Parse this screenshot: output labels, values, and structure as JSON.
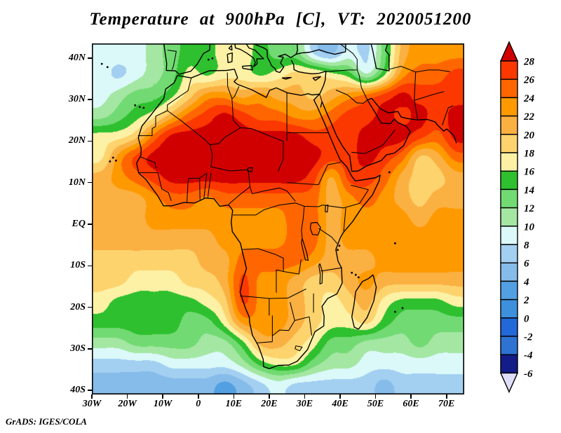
{
  "title": "Temperature at 900hPa [C], VT: 2020051200",
  "attribution": "GrADS: IGES/COLA",
  "colors": {
    "background": "#ffffff",
    "frame": "#000000",
    "text": "#000000"
  },
  "chart_data": {
    "type": "heatmap",
    "variable": "Temperature",
    "level": "900hPa",
    "units": "C",
    "valid_time": "2020051200",
    "title": "Temperature at 900hPa [C], VT: 2020051200",
    "grid_on": false,
    "legend_position": "right",
    "lon_range": [
      -30,
      75
    ],
    "lat_range": [
      -41,
      43.5
    ],
    "lon_ticks": {
      "labels": [
        "30W",
        "20W",
        "10W",
        "0",
        "10E",
        "20E",
        "30E",
        "40E",
        "50E",
        "60E",
        "70E"
      ],
      "values": [
        -30,
        -20,
        -10,
        0,
        10,
        20,
        30,
        40,
        50,
        60,
        70
      ]
    },
    "lat_ticks": {
      "labels": [
        "40N",
        "30N",
        "20N",
        "10N",
        "EQ",
        "10S",
        "20S",
        "30S",
        "40S"
      ],
      "values": [
        40,
        30,
        20,
        10,
        0,
        -10,
        -20,
        -30,
        -40
      ]
    },
    "colorbar": {
      "boundary_labels": [
        "28",
        "26",
        "24",
        "22",
        "20",
        "18",
        "16",
        "14",
        "12",
        "10",
        "8",
        "6",
        "4",
        "2",
        "0",
        "-2",
        "-4",
        "-6"
      ],
      "boundaries": [
        28,
        26,
        24,
        22,
        20,
        18,
        16,
        14,
        12,
        10,
        8,
        6,
        4,
        2,
        0,
        -2,
        -4,
        -6
      ],
      "colors_top_to_bottom": [
        "#d10000",
        "#fa3800",
        "#ff6600",
        "#ff9900",
        "#fbb042",
        "#fdd36d",
        "#fdf1a6",
        "#2ec02e",
        "#72da72",
        "#a3e7a3",
        "#dcf9f9",
        "#a3cff1",
        "#86bce9",
        "#529fe2",
        "#3c90dc",
        "#2268d8",
        "#2e72d2",
        "#131c87",
        "#e0def6"
      ],
      "over_color": "#d10000",
      "under_color": "#e0def6"
    },
    "grid": {
      "lons": [
        -27.5,
        -22.5,
        -17.5,
        -12.5,
        -7.5,
        -2.5,
        2.5,
        7.5,
        12.5,
        17.5,
        22.5,
        27.5,
        32.5,
        37.5,
        42.5,
        47.5,
        52.5,
        57.5,
        62.5,
        67.5,
        72.5
      ],
      "lats": [
        42.5,
        37.5,
        32.5,
        27.5,
        22.5,
        17.5,
        12.5,
        7.5,
        2.5,
        -2.5,
        -7.5,
        -12.5,
        -17.5,
        -22.5,
        -27.5,
        -32.5,
        -37.5
      ],
      "temps_c": [
        [
          9,
          9,
          9,
          11,
          13,
          15,
          15,
          17,
          17,
          15,
          13,
          13,
          7,
          5,
          9,
          7,
          13,
          21,
          23,
          23,
          23
        ],
        [
          9,
          7,
          9,
          11,
          13,
          17,
          15,
          17,
          17,
          15,
          17,
          19,
          19,
          17,
          15,
          9,
          15,
          23,
          25,
          25,
          27
        ],
        [
          9,
          11,
          13,
          13,
          15,
          19,
          23,
          23,
          21,
          23,
          21,
          21,
          19,
          21,
          23,
          25,
          27,
          29,
          27,
          27,
          27
        ],
        [
          11,
          13,
          15,
          17,
          21,
          25,
          27,
          29,
          27,
          25,
          25,
          23,
          23,
          25,
          27,
          27,
          29,
          27,
          29,
          27,
          29
        ],
        [
          17,
          17,
          19,
          25,
          29,
          29,
          29,
          29,
          29,
          29,
          29,
          29,
          27,
          27,
          27,
          29,
          29,
          29,
          27,
          25,
          29
        ],
        [
          17,
          23,
          27,
          29,
          29,
          29,
          29,
          29,
          29,
          29,
          29,
          29,
          29,
          27,
          27,
          29,
          27,
          25,
          19,
          21,
          25
        ],
        [
          21,
          23,
          25,
          27,
          29,
          29,
          29,
          29,
          29,
          29,
          29,
          29,
          27,
          21,
          27,
          27,
          25,
          21,
          19,
          19,
          21
        ],
        [
          21,
          21,
          21,
          23,
          25,
          25,
          23,
          25,
          25,
          25,
          25,
          25,
          25,
          21,
          23,
          25,
          23,
          21,
          19,
          21,
          21
        ],
        [
          21,
          21,
          21,
          23,
          23,
          23,
          23,
          23,
          23,
          23,
          23,
          25,
          25,
          21,
          23,
          23,
          23,
          23,
          21,
          23,
          23
        ],
        [
          21,
          21,
          21,
          21,
          21,
          21,
          21,
          23,
          23,
          23,
          23,
          25,
          25,
          21,
          23,
          23,
          23,
          23,
          23,
          23,
          23
        ],
        [
          19,
          19,
          19,
          19,
          19,
          19,
          21,
          21,
          25,
          25,
          25,
          25,
          23,
          21,
          21,
          21,
          23,
          23,
          23,
          23,
          23
        ],
        [
          19,
          19,
          17,
          17,
          17,
          19,
          19,
          21,
          27,
          23,
          23,
          21,
          19,
          19,
          21,
          23,
          21,
          21,
          21,
          21,
          21
        ],
        [
          17,
          15,
          15,
          15,
          15,
          15,
          17,
          19,
          27,
          23,
          23,
          21,
          19,
          17,
          19,
          21,
          17,
          15,
          15,
          15,
          17
        ],
        [
          15,
          15,
          15,
          15,
          15,
          13,
          13,
          17,
          23,
          23,
          23,
          21,
          19,
          17,
          17,
          19,
          15,
          13,
          13,
          13,
          13
        ],
        [
          11,
          11,
          13,
          13,
          13,
          13,
          11,
          11,
          15,
          21,
          21,
          19,
          17,
          13,
          13,
          11,
          11,
          11,
          13,
          11,
          11
        ],
        [
          7,
          7,
          7,
          7,
          9,
          9,
          9,
          9,
          11,
          15,
          17,
          17,
          13,
          11,
          11,
          9,
          9,
          9,
          9,
          9,
          9
        ],
        [
          5,
          5,
          5,
          5,
          5,
          5,
          5,
          3,
          5,
          7,
          9,
          7,
          7,
          7,
          7,
          7,
          5,
          7,
          7,
          7,
          7
        ]
      ]
    }
  }
}
